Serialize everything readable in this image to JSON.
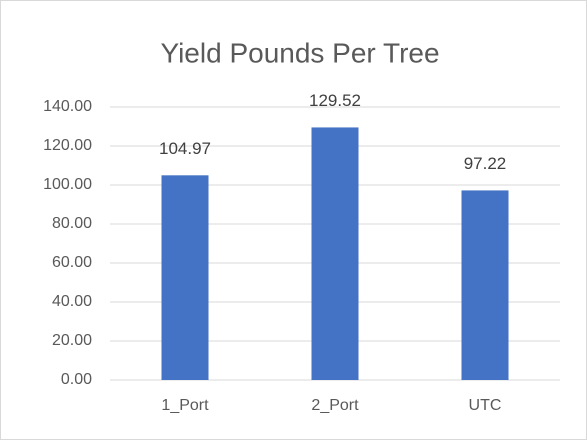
{
  "chart_data": {
    "type": "bar",
    "title": "Yield Pounds Per Tree",
    "categories": [
      "1_Port",
      "2_Port",
      "UTC"
    ],
    "values": [
      104.97,
      129.52,
      97.22
    ],
    "color": "#4472c4",
    "ylim": [
      0,
      140
    ],
    "yticks": [
      {
        "value": 0,
        "label": "0.00"
      },
      {
        "value": 20,
        "label": "20.00"
      },
      {
        "value": 40,
        "label": "40.00"
      },
      {
        "value": 60,
        "label": "60.00"
      },
      {
        "value": 80,
        "label": "80.00"
      },
      {
        "value": 100,
        "label": "100.00"
      },
      {
        "value": 120,
        "label": "120.00"
      },
      {
        "value": 140,
        "label": "140.00"
      }
    ],
    "grid": true
  }
}
